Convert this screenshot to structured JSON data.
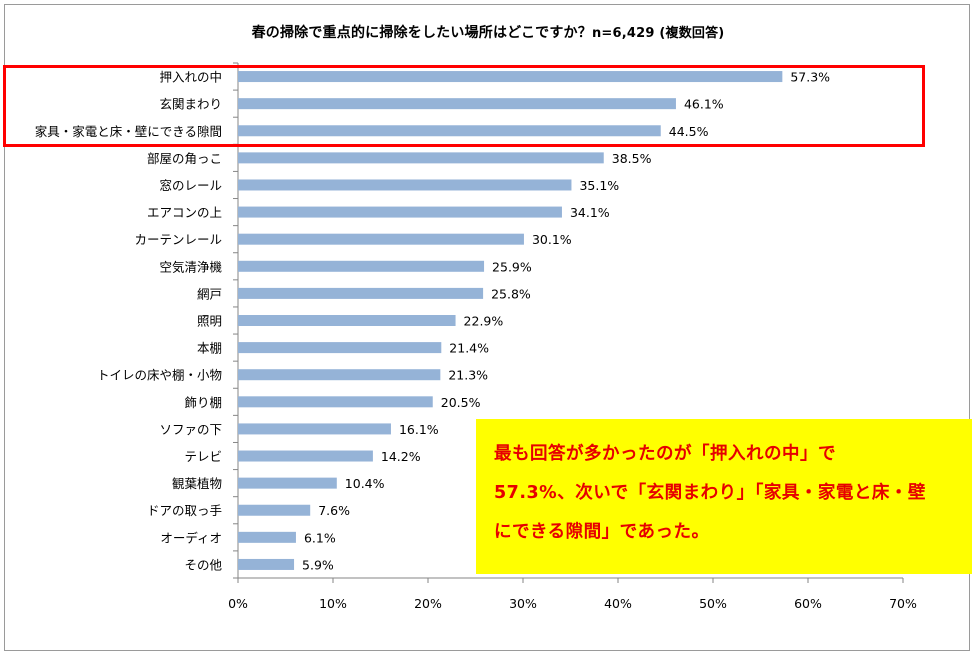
{
  "title": {
    "main": "春の掃除で重点的に掃除をしたい場所はどこですか？",
    "note": "n=6,429 (複数回答)"
  },
  "chart_data": {
    "type": "bar",
    "orientation": "horizontal",
    "title": "春の掃除で重点的に掃除をしたい場所はどこですか？n=6,429 (複数回答)",
    "categories": [
      "押入れの中",
      "玄関まわり",
      "家具・家電と床・壁にできる隙間",
      "部屋の角っこ",
      "窓のレール",
      "エアコンの上",
      "カーテンレール",
      "空気清浄機",
      "網戸",
      "照明",
      "本棚",
      "トイレの床や棚・小物",
      "飾り棚",
      "ソファの下",
      "テレビ",
      "観葉植物",
      "ドアの取っ手",
      "オーディオ",
      "その他"
    ],
    "values": [
      57.3,
      46.1,
      44.5,
      38.5,
      35.1,
      34.1,
      30.1,
      25.9,
      25.8,
      22.9,
      21.4,
      21.3,
      20.5,
      16.1,
      14.2,
      10.4,
      7.6,
      6.1,
      5.9
    ],
    "value_labels": [
      "57.3%",
      "46.1%",
      "44.5%",
      "38.5%",
      "35.1%",
      "34.1%",
      "30.1%",
      "25.9%",
      "25.8%",
      "22.9%",
      "21.4%",
      "21.3%",
      "20.5%",
      "16.1%",
      "14.2%",
      "10.4%",
      "7.6%",
      "6.1%",
      "5.9%"
    ],
    "xlim": [
      0,
      70
    ],
    "x_ticks": [
      "0%",
      "10%",
      "20%",
      "30%",
      "40%",
      "50%",
      "60%",
      "70%"
    ],
    "bar_color": "#95b3d7",
    "highlighted_categories": [
      "押入れの中",
      "玄関まわり",
      "家具・家電と床・壁にできる隙間"
    ],
    "highlight_color": "#ff0000",
    "grid": false,
    "legend": "none"
  },
  "callout": {
    "lines": [
      "最も回答が多かったのが「押入れの中」で",
      "57.3%、次いで「玄関まわり」「家具・家電と床・壁",
      "にできる隙間」であった。"
    ],
    "background": "#ffff00",
    "text_color": "#e60000"
  }
}
